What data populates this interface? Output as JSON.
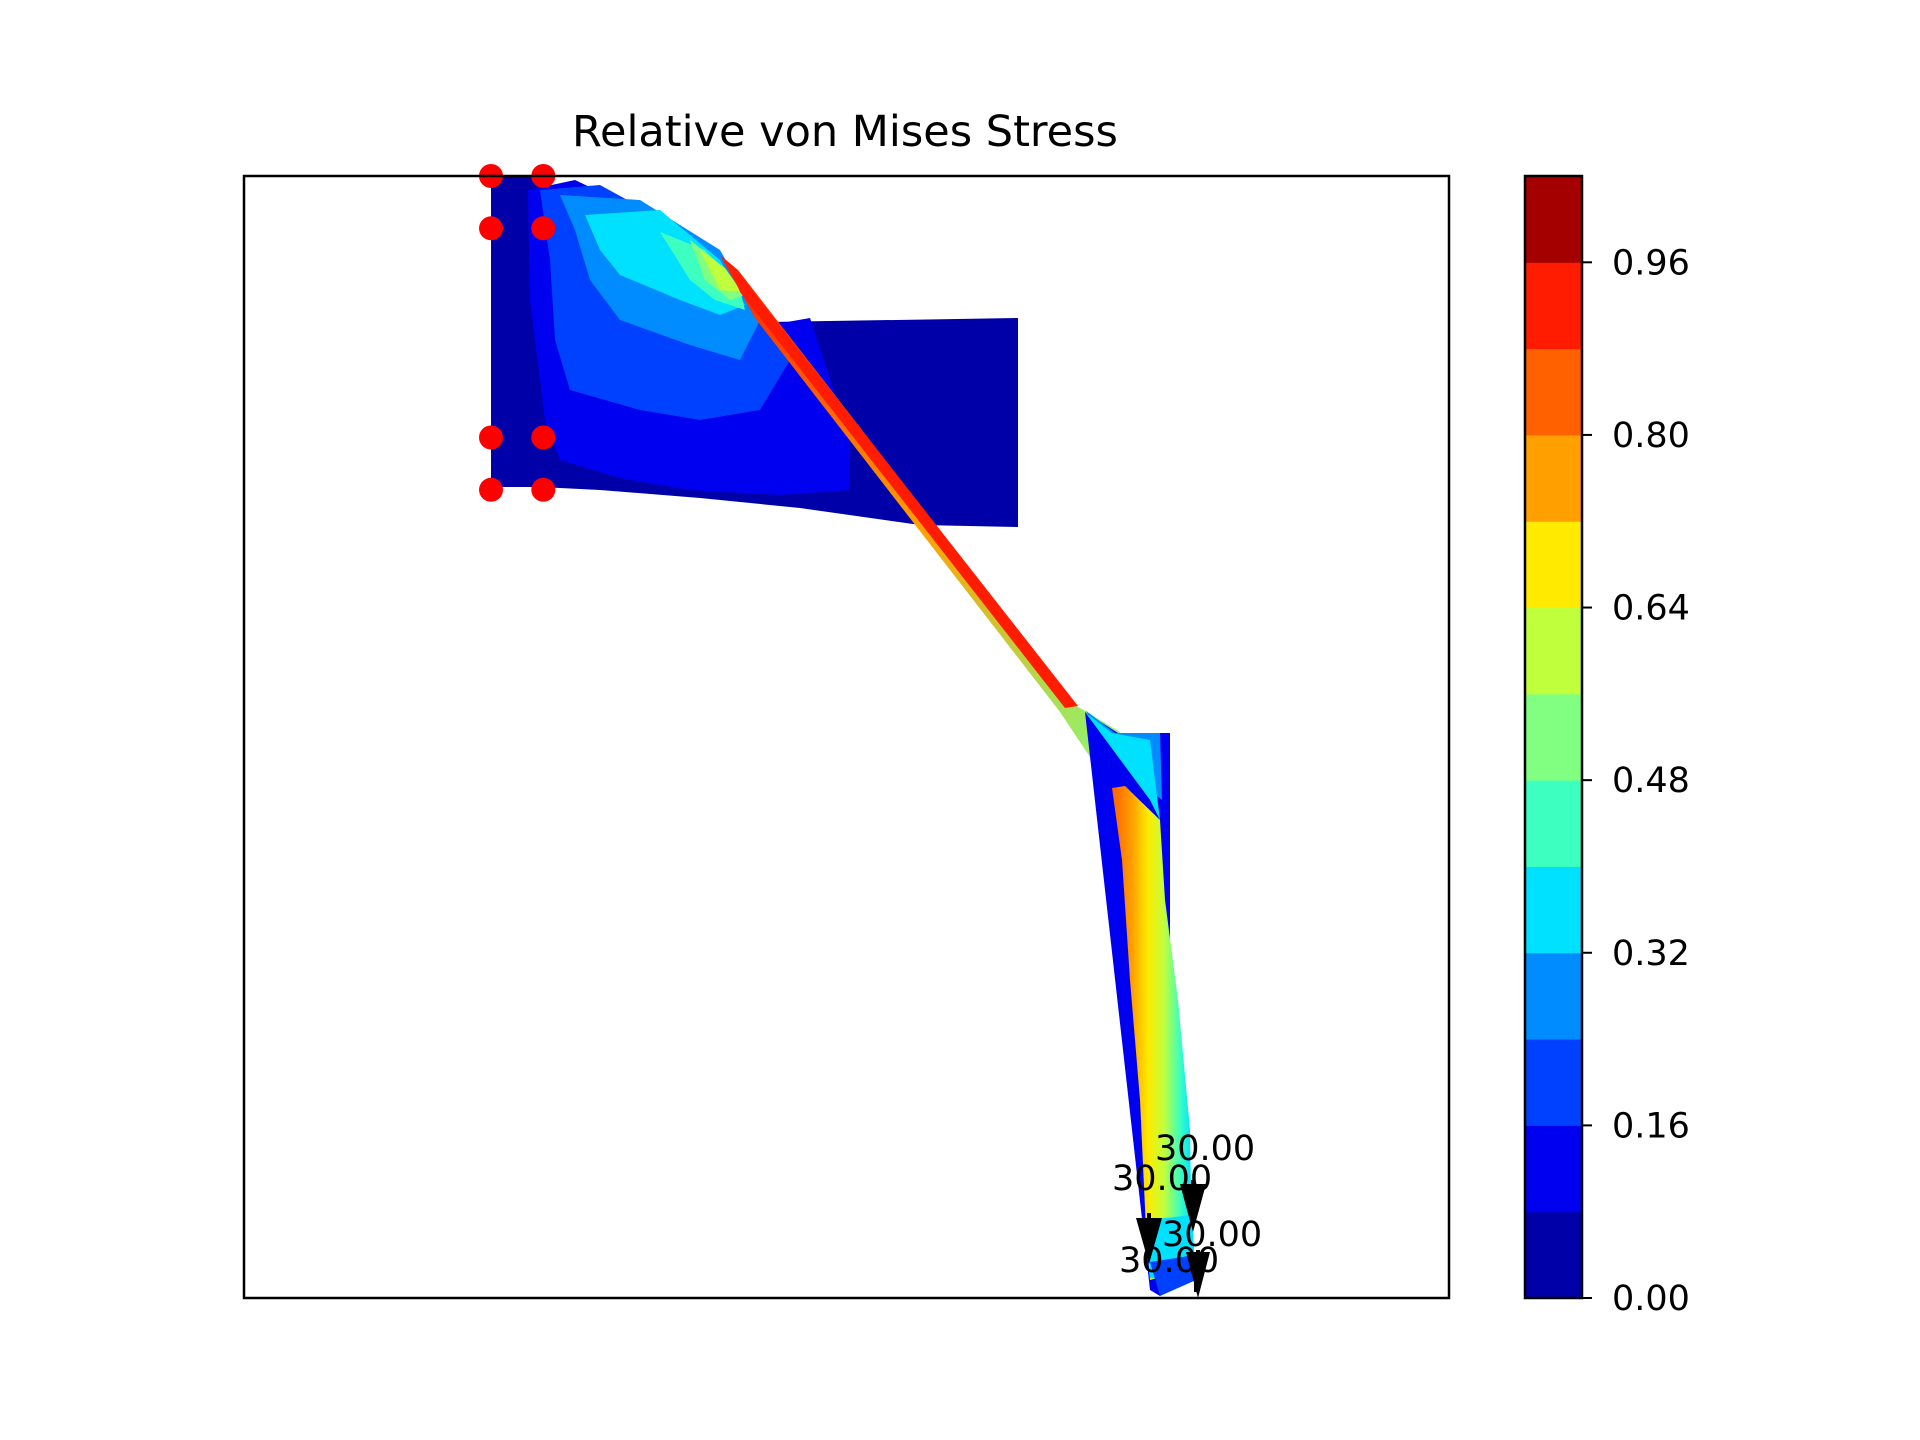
{
  "chart_data": {
    "type": "contour",
    "title": "Relative von Mises Stress",
    "xlabel": "",
    "ylabel": "",
    "colormap": "jet",
    "colorbar": {
      "min": 0.0,
      "max": 1.04,
      "levels": [
        0.0,
        0.08,
        0.16,
        0.24,
        0.32,
        0.4,
        0.48,
        0.56,
        0.64,
        0.72,
        0.8,
        0.88,
        0.96,
        1.04
      ],
      "colors": [
        "#0000a8",
        "#0000f0",
        "#0040ff",
        "#008cff",
        "#00e0ff",
        "#3cffc0",
        "#80ff80",
        "#c0ff3c",
        "#ffea00",
        "#ffa000",
        "#ff6000",
        "#ff1c00",
        "#a40000"
      ],
      "ticks": [
        {
          "value": 0.0,
          "label": "0.00"
        },
        {
          "value": 0.16,
          "label": "0.16"
        },
        {
          "value": 0.32,
          "label": "0.32"
        },
        {
          "value": 0.48,
          "label": "0.48"
        },
        {
          "value": 0.64,
          "label": "0.64"
        },
        {
          "value": 0.8,
          "label": "0.80"
        },
        {
          "value": 0.96,
          "label": "0.96"
        }
      ]
    },
    "supports": [
      {
        "x": 0.0,
        "y": 0.0
      },
      {
        "x": 1.0,
        "y": 0.0
      },
      {
        "x": 0.0,
        "y": 1.0
      },
      {
        "x": 1.0,
        "y": 1.0
      },
      {
        "x": 0.0,
        "y": 5.0
      },
      {
        "x": 1.0,
        "y": 5.0
      },
      {
        "x": 0.0,
        "y": 6.0
      },
      {
        "x": 1.0,
        "y": 6.0
      }
    ],
    "loads": [
      {
        "label": "30.00"
      },
      {
        "label": "30.00"
      },
      {
        "label": "30.00"
      },
      {
        "label": "30.00"
      }
    ]
  }
}
